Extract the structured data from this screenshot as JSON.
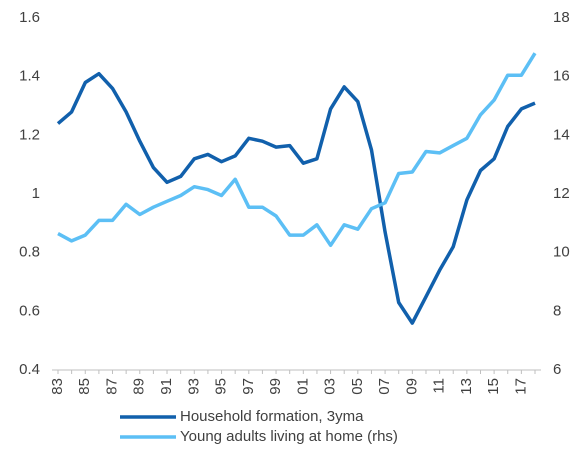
{
  "chart_data": {
    "type": "line",
    "categories": [
      "83",
      null,
      "85",
      null,
      "87",
      null,
      "89",
      null,
      "91",
      null,
      "93",
      null,
      "95",
      null,
      "97",
      null,
      "99",
      null,
      "01",
      null,
      "03",
      null,
      "05",
      null,
      "07",
      null,
      "09",
      null,
      "11",
      null,
      "13",
      null,
      "15",
      null,
      "17",
      null
    ],
    "series": [
      {
        "name": "Household formation, 3yma",
        "color": "#1160ac",
        "axis": "y",
        "values": [
          1.24,
          1.28,
          1.38,
          1.41,
          1.36,
          1.28,
          1.18,
          1.09,
          1.04,
          1.06,
          1.12,
          1.135,
          1.11,
          1.13,
          1.19,
          1.18,
          1.16,
          1.165,
          1.105,
          1.12,
          1.29,
          1.365,
          1.315,
          1.15,
          0.87,
          0.63,
          0.56,
          0.65,
          0.74,
          0.82,
          0.98,
          1.08,
          1.12,
          1.23,
          1.29,
          1.31
        ]
      },
      {
        "name": "Young adults living at home (rhs)",
        "color": "#5cbff5",
        "axis": "y2",
        "values": [
          10.65,
          10.4,
          10.6,
          11.1,
          11.1,
          11.65,
          11.3,
          11.55,
          11.75,
          11.95,
          12.25,
          12.15,
          11.95,
          12.5,
          11.55,
          11.55,
          11.25,
          10.6,
          10.6,
          10.95,
          10.25,
          10.95,
          10.8,
          11.5,
          11.7,
          12.7,
          12.75,
          13.45,
          13.4,
          13.65,
          13.9,
          14.7,
          15.2,
          16.05,
          16.05,
          16.8
        ]
      }
    ],
    "ylim": [
      0.4,
      1.6
    ],
    "yticks": [
      0.4,
      0.6,
      0.8,
      1,
      1.2,
      1.4,
      1.6
    ],
    "y2lim": [
      6,
      18
    ],
    "y2ticks": [
      6,
      8,
      10,
      12,
      14,
      16,
      18
    ],
    "grid": false,
    "legend": "bottom"
  }
}
